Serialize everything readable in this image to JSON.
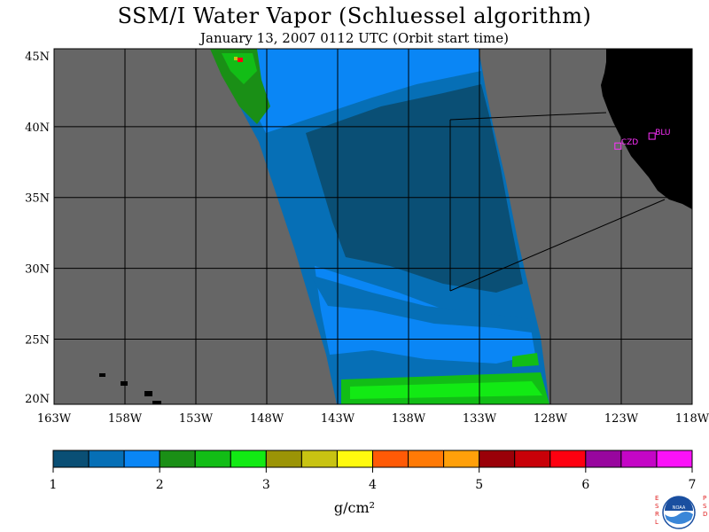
{
  "title": "SSM/I Water Vapor (Schluessel algorithm)",
  "subtitle": "January 13, 2007  0112 UTC  (Orbit start time)",
  "map": {
    "lon_labels": [
      "163W",
      "158W",
      "153W",
      "148W",
      "143W",
      "138W",
      "133W",
      "128W",
      "123W",
      "118W"
    ],
    "lat_labels": [
      "45N",
      "40N",
      "35N",
      "30N",
      "25N",
      "20N"
    ],
    "stations": [
      {
        "id": "CZD",
        "lon": -123.2,
        "lat": 38.6
      },
      {
        "id": "BLU",
        "lon": -120.8,
        "lat": 39.3
      }
    ],
    "colors": {
      "ocean_nodata": "#666666",
      "land": "#000000",
      "grid": "#000000"
    }
  },
  "colorbar": {
    "tick_labels": [
      "1",
      "2",
      "3",
      "4",
      "5",
      "6",
      "7"
    ],
    "unit": "g/cm²",
    "colors": [
      "#0a4f75",
      "#066fb6",
      "#0a86f5",
      "#1a8f16",
      "#12bd16",
      "#12ea14",
      "#9b9406",
      "#c8c312",
      "#fffa0e",
      "#ff5a06",
      "#ff7a06",
      "#ffa00a",
      "#9a0008",
      "#c80008",
      "#fe0010",
      "#98069e",
      "#c406c6",
      "#fb12f8"
    ]
  },
  "logo": {
    "left_text": "ESRL",
    "right_text": "PSD",
    "center_text": "NOAA"
  }
}
